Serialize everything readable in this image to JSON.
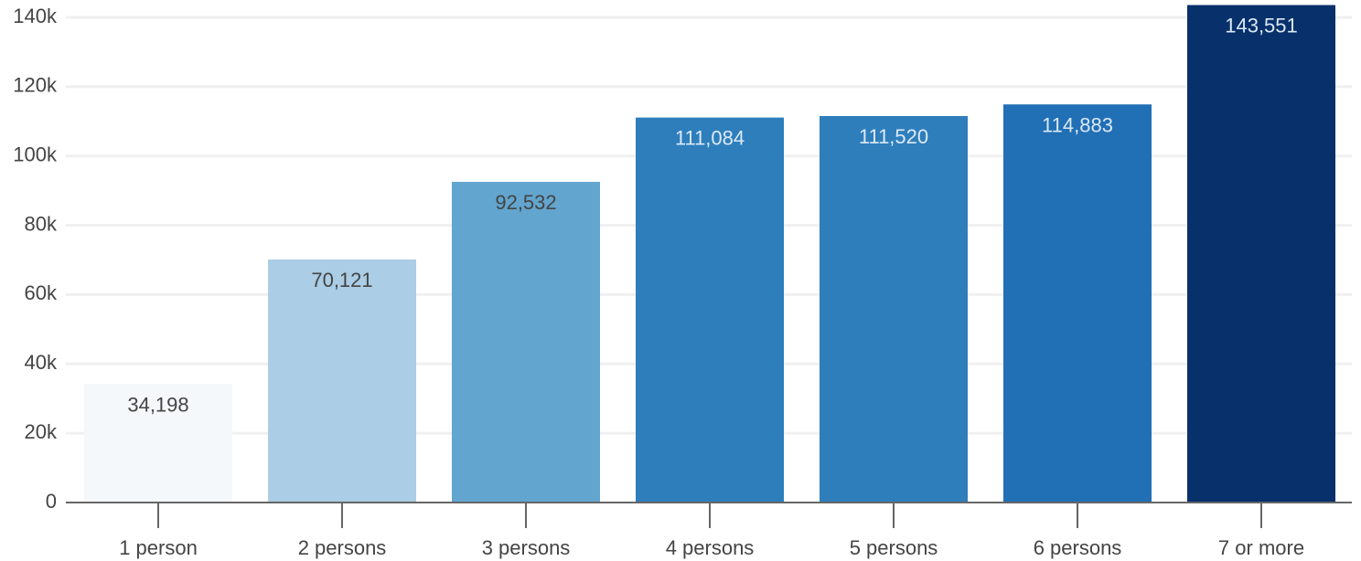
{
  "chart_data": {
    "type": "bar",
    "title": "",
    "xlabel": "",
    "ylabel": "",
    "categories": [
      "1 person",
      "2 persons",
      "3 persons",
      "4 persons",
      "5 persons",
      "6 persons",
      "7 or more"
    ],
    "values": [
      34198,
      70121,
      92532,
      111084,
      111520,
      114883,
      143551
    ],
    "data_labels": [
      "34,198",
      "70,121",
      "92,532",
      "111,084",
      "111,520",
      "114,883",
      "143,551"
    ],
    "bar_colors": [
      "#f4f8fb",
      "#abcde5",
      "#62a5cf",
      "#2e7ebc",
      "#2e7ebc",
      "#216fb5",
      "#08306b"
    ],
    "label_colors": [
      "#444444",
      "#444444",
      "#444444",
      "#dbe9f6",
      "#dbe9f6",
      "#dbe9f6",
      "#dbe9f6"
    ],
    "ylim": [
      0,
      140000
    ],
    "yticks": [
      0,
      20000,
      40000,
      60000,
      80000,
      100000,
      120000,
      140000
    ],
    "ytick_labels": [
      "0",
      "20k",
      "40k",
      "60k",
      "80k",
      "100k",
      "120k",
      "140k"
    ],
    "grid": true,
    "legend": "none"
  }
}
